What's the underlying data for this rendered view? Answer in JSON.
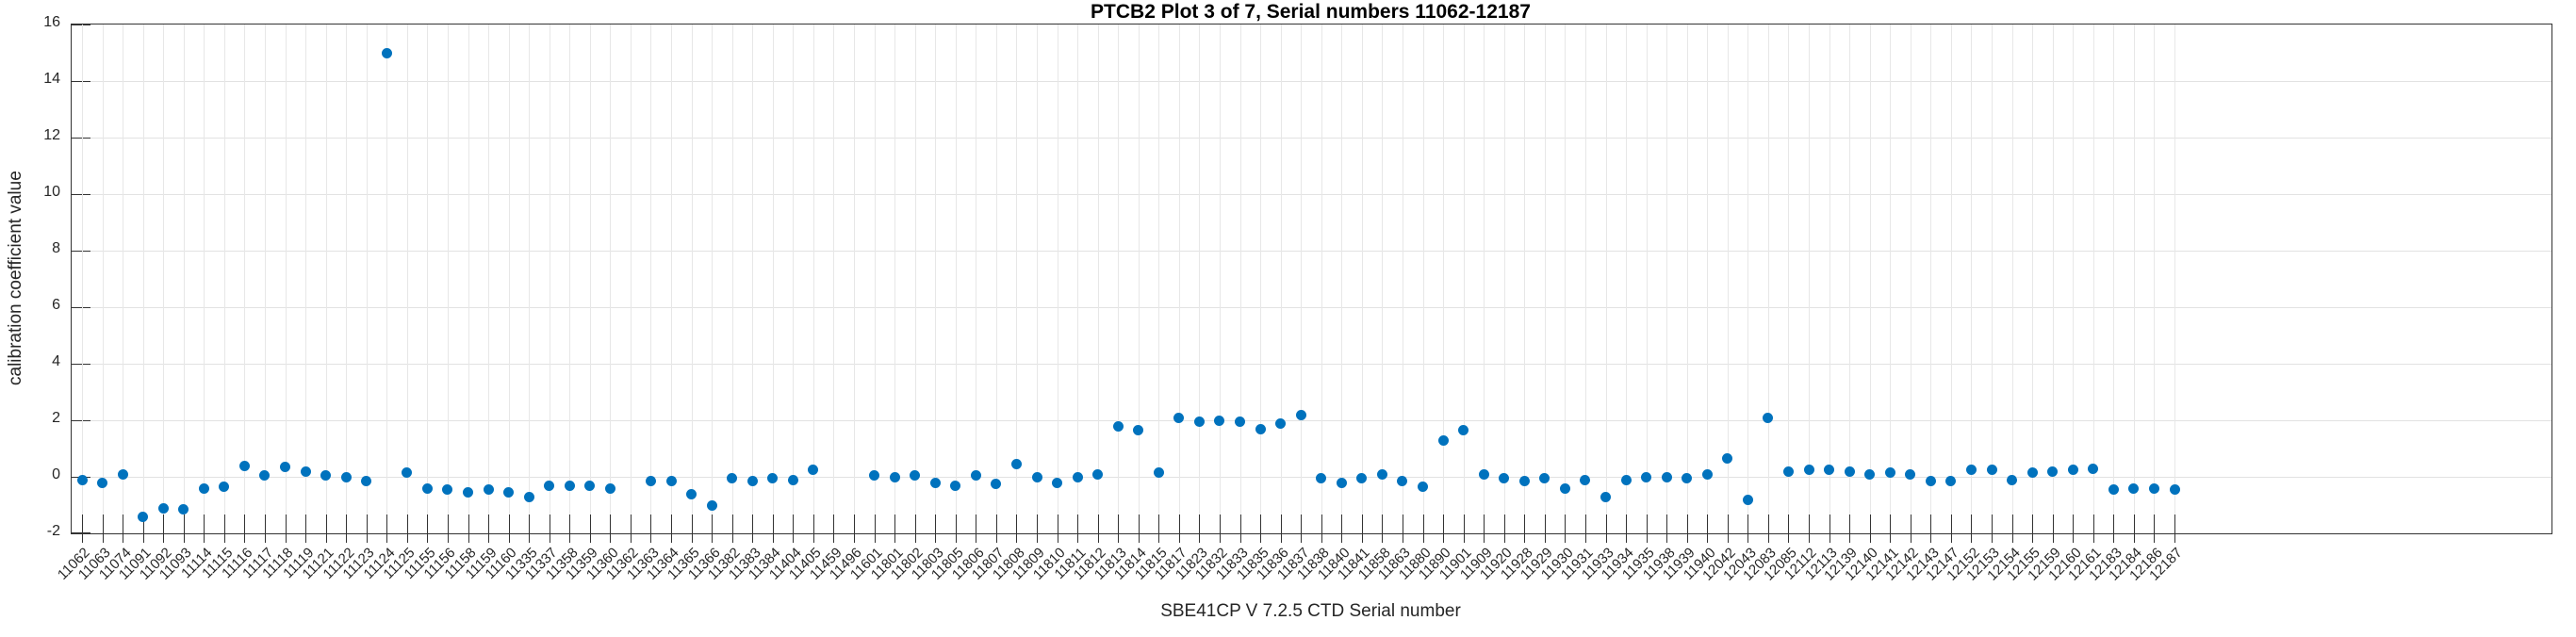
{
  "title": "PTCB2 Plot 3 of 7, Serial numbers 11062-12187",
  "colors": {
    "marker": "#0072BD",
    "grid": "#e2e2e2",
    "axis": "#333333",
    "text": "#262626",
    "background": "#ffffff"
  },
  "chart_data": {
    "type": "scatter",
    "title": "PTCB2 Plot 3 of 7, Serial numbers 11062-12187",
    "xlabel": "SBE41CP V 7.2.5 CTD Serial number",
    "ylabel": "calibration coefficient value",
    "ylim": [
      -2,
      16
    ],
    "yticks": [
      16,
      14,
      12,
      10,
      8,
      6,
      4,
      2,
      0,
      -2
    ],
    "grid": true,
    "legend": "none",
    "marker_color": "#0072BD",
    "categories": [
      "11062",
      "11063",
      "11074",
      "11091",
      "11092",
      "11093",
      "11114",
      "11115",
      "11116",
      "11117",
      "11118",
      "11119",
      "11121",
      "11122",
      "11123",
      "11124",
      "11125",
      "11155",
      "11156",
      "11158",
      "11159",
      "11160",
      "11335",
      "11337",
      "11358",
      "11359",
      "11360",
      "11362",
      "11363",
      "11364",
      "11365",
      "11366",
      "11382",
      "11383",
      "11384",
      "11404",
      "11405",
      "11459",
      "11496",
      "11601",
      "11801",
      "11802",
      "11803",
      "11805",
      "11806",
      "11807",
      "11808",
      "11809",
      "11810",
      "11811",
      "11812",
      "11813",
      "11814",
      "11815",
      "11817",
      "11823",
      "11832",
      "11833",
      "11835",
      "11836",
      "11837",
      "11838",
      "11840",
      "11841",
      "11858",
      "11863",
      "11880",
      "11890",
      "11901",
      "11909",
      "11920",
      "11928",
      "11929",
      "11930",
      "11931",
      "11933",
      "11934",
      "11935",
      "11938",
      "11939",
      "11940",
      "12042",
      "12043",
      "12083",
      "12085",
      "12112",
      "12113",
      "12139",
      "12140",
      "12141",
      "12142",
      "12143",
      "12147",
      "12152",
      "12153",
      "12154",
      "12155",
      "12159",
      "12160",
      "12161",
      "12183",
      "12184",
      "12186",
      "12187"
    ],
    "values": [
      -0.1,
      -0.2,
      0.1,
      -1.4,
      -1.1,
      -1.15,
      -0.4,
      -0.35,
      0.4,
      0.05,
      0.35,
      0.2,
      0.05,
      0.0,
      -0.15,
      15.0,
      0.15,
      -0.4,
      -0.45,
      -0.55,
      -0.45,
      -0.55,
      -0.7,
      -0.3,
      -0.3,
      -0.3,
      -0.4,
      null,
      -0.15,
      -0.15,
      -0.6,
      -1.0,
      -0.05,
      -0.15,
      -0.05,
      -0.1,
      0.25,
      null,
      null,
      0.05,
      0.0,
      0.05,
      -0.2,
      -0.3,
      0.05,
      -0.25,
      0.45,
      0.0,
      -0.2,
      0.0,
      0.1,
      1.8,
      1.65,
      0.15,
      2.1,
      1.95,
      2.0,
      1.95,
      1.7,
      1.9,
      2.2,
      -0.05,
      -0.2,
      -0.05,
      0.1,
      -0.15,
      -0.35,
      1.3,
      1.65,
      0.1,
      -0.05,
      -0.15,
      -0.05,
      -0.4,
      -0.1,
      -0.7,
      -0.1,
      0.0,
      0.0,
      -0.05,
      0.1,
      0.65,
      -0.8,
      2.1,
      0.2,
      0.25,
      0.25,
      0.2,
      0.1,
      0.15,
      0.1,
      -0.15,
      -0.15,
      0.25,
      0.25,
      -0.1,
      0.15,
      0.2,
      0.25,
      0.3,
      -0.45,
      -0.4,
      -0.4,
      -0.45
    ]
  }
}
